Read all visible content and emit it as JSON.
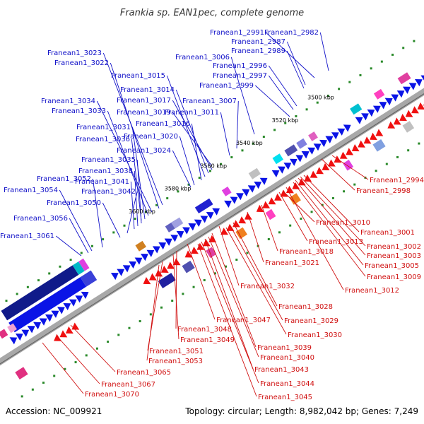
{
  "title": "Frankia sp. EAN1pec, complete genome",
  "accession": "Accession: NC_009921",
  "topology": "Topology: circular; Length: 8,982,042 bp; Genes: 7,249",
  "colors": {
    "forward": "#0a14e6",
    "reverse": "#f01010",
    "forward_label": "#1010c8",
    "reverse_label": "#d01010",
    "axis": "#a8a8a8",
    "gc": "#2a8a2a"
  },
  "ticks": [
    "3500 kbp",
    "3520 kbp",
    "3540 kbp",
    "3560 kbp",
    "3580 kbp",
    "3600 kbp"
  ],
  "forward_labels": [
    "Franean1_2991",
    "Franean1_2982",
    "Franean1_2987",
    "Franean1_2989",
    "Franean1_3006",
    "Franean1_2996",
    "Franean1_2997",
    "Franean1_2999",
    "Franean1_3023",
    "Franean1_3022",
    "Franean1_3015",
    "Franean1_3014",
    "Franean1_3017",
    "Franean1_3007",
    "Franean1_3034",
    "Franean1_3019",
    "Franean1_3011",
    "Franean1_3033",
    "Franean1_3016",
    "Franean1_3031",
    "Franean1_3020",
    "Franean1_3036",
    "Franean1_3024",
    "Franean1_3035",
    "Franean1_3038",
    "Franean1_3041",
    "Franean1_3052",
    "Franean1_3042",
    "Franean1_3054",
    "Franean1_3050",
    "Franean1_3056",
    "Franean1_3061"
  ],
  "reverse_labels": [
    "Franean1_2994",
    "Franean1_2998",
    "Franean1_3010",
    "Franean1_3001",
    "Franean1_3013",
    "Franean1_3002",
    "Franean1_3003",
    "Franean1_3018",
    "Franean1_3005",
    "Franean1_3021",
    "Franean1_3009",
    "Franean1_3012",
    "Franean1_3032",
    "Franean1_3028",
    "Franean1_3029",
    "Franean1_3047",
    "Franean1_3048",
    "Franean1_3030",
    "Franean1_3049",
    "Franean1_3039",
    "Franean1_3051",
    "Franean1_3040",
    "Franean1_3053",
    "Franean1_3043",
    "Franean1_3065",
    "Franean1_3044",
    "Franean1_3067",
    "Franean1_3045",
    "Franean1_3070"
  ]
}
